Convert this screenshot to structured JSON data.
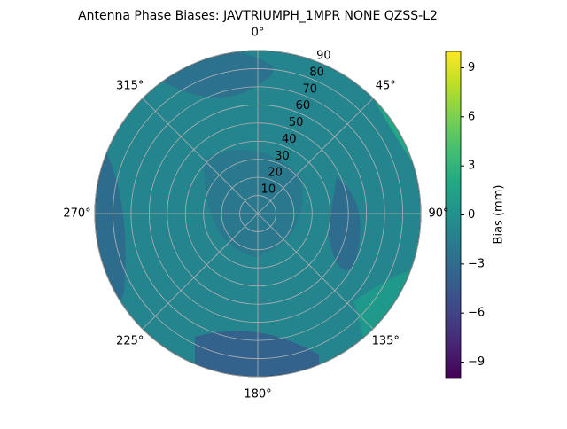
{
  "chart_data": {
    "type": "polar_contour",
    "title": "Antenna Phase Biases: JAVTRIUMPH_1MPR NONE QZSS-L2",
    "rlim": [
      0,
      90
    ],
    "rticks": [
      10,
      20,
      30,
      40,
      50,
      60,
      70,
      80,
      90
    ],
    "thetaticks": [
      {
        "value": 0,
        "label": "0°"
      },
      {
        "value": 45,
        "label": "45°"
      },
      {
        "value": 90,
        "label": "90°"
      },
      {
        "value": 135,
        "label": "135°"
      },
      {
        "value": 180,
        "label": "180°"
      },
      {
        "value": 225,
        "label": "225°"
      },
      {
        "value": 270,
        "label": "270°"
      },
      {
        "value": 315,
        "label": "315°"
      }
    ],
    "colorbar_label": "Bias (mm)",
    "clim": [
      -10,
      10
    ],
    "cticks": [
      {
        "value": -9,
        "label": "−9"
      },
      {
        "value": -6,
        "label": "−6"
      },
      {
        "value": -3,
        "label": "−3"
      },
      0,
      3,
      6,
      9
    ],
    "grid": true
  }
}
